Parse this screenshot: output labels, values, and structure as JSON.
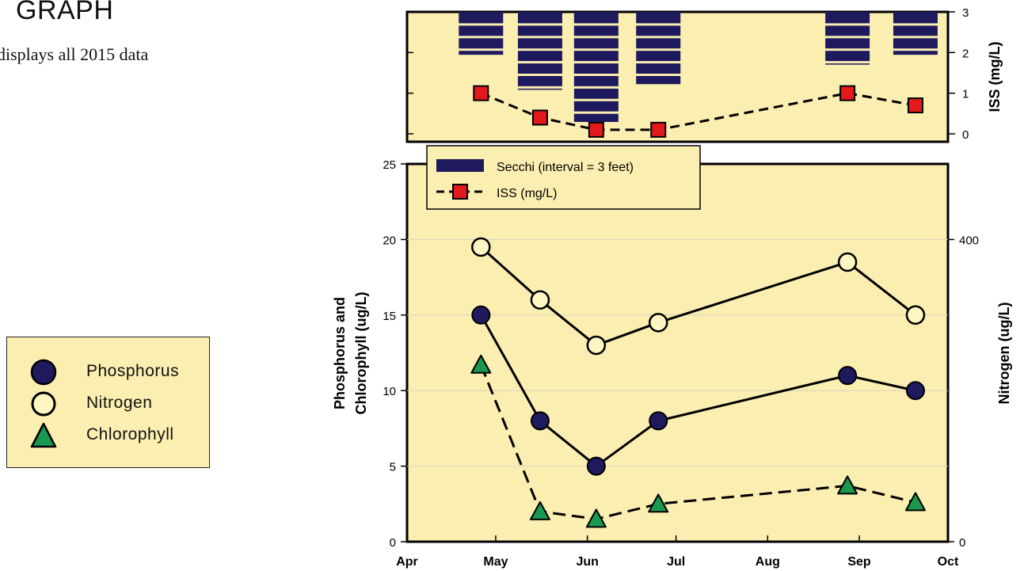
{
  "page": {
    "heading": "GRAPH",
    "subtitle": "displays all 2015 data"
  },
  "legend": {
    "phosphorus": "Phosphorus",
    "nitrogen": "Nitrogen",
    "chlorophyll": "Chlorophyll"
  },
  "colors": {
    "background": "#fbeeb1",
    "phosphorus": "#1f1a5e",
    "nitrogen": "#fdf6c3",
    "chlorophyll": "#1a9850",
    "iss": "#e31a1c",
    "secchi": "#1f1a5e"
  },
  "chart_data": [
    {
      "type": "bar",
      "name": "secchi-iss-panel",
      "x_ticks": [
        "Apr",
        "May",
        "Jun",
        "Jul",
        "Aug",
        "Sep",
        "Oct"
      ],
      "y2label": "ISS (mg/L)",
      "y2lim": [
        0,
        3
      ],
      "y2_ticks": [
        0,
        1,
        2,
        3
      ],
      "secchi_legend": "Secchi (interval = 3 feet)",
      "secchi": [
        {
          "date": "2015-04-26",
          "depth_ft": 10.5
        },
        {
          "date": "2015-05-16",
          "depth_ft": 18.5
        },
        {
          "date": "2015-06-04",
          "depth_ft": 26.5
        },
        {
          "date": "2015-06-25",
          "depth_ft": 17.5
        },
        {
          "date": "2015-08-28",
          "depth_ft": 12.5
        },
        {
          "date": "2015-09-20",
          "depth_ft": 10.5
        }
      ],
      "series": [
        {
          "name": "ISS (mg/L)",
          "x": [
            "2015-04-26",
            "2015-05-16",
            "2015-06-04",
            "2015-06-25",
            "2015-08-28",
            "2015-09-20"
          ],
          "values": [
            1.0,
            0.4,
            0.1,
            0.1,
            1.0,
            0.7
          ]
        }
      ],
      "grid": false
    },
    {
      "type": "line",
      "name": "nutrients-panel",
      "x_ticks": [
        "Apr",
        "May",
        "Jun",
        "Jul",
        "Aug",
        "Sep",
        "Oct"
      ],
      "x": [
        "2015-04-26",
        "2015-05-16",
        "2015-06-04",
        "2015-06-25",
        "2015-08-28",
        "2015-09-20"
      ],
      "ylabel": [
        "Phosphorus and",
        "Chlorophyll (ug/L)"
      ],
      "ylim": [
        0,
        25
      ],
      "y_ticks": [
        0,
        5,
        10,
        15,
        20,
        25
      ],
      "y2label": "Nitrogen (ug/L)",
      "y2lim": [
        0,
        500
      ],
      "y2_ticks": [
        0,
        400
      ],
      "grid": true,
      "legend_position": "top-left",
      "series": [
        {
          "name": "Phosphorus",
          "axis": "left",
          "values": [
            15,
            8,
            5,
            8,
            11,
            10
          ]
        },
        {
          "name": "Nitrogen",
          "axis": "right",
          "values": [
            390,
            320,
            260,
            290,
            370,
            300
          ]
        },
        {
          "name": "Chlorophyll",
          "axis": "left",
          "values": [
            11.7,
            2.0,
            1.5,
            2.5,
            3.7,
            2.6
          ]
        }
      ]
    }
  ]
}
